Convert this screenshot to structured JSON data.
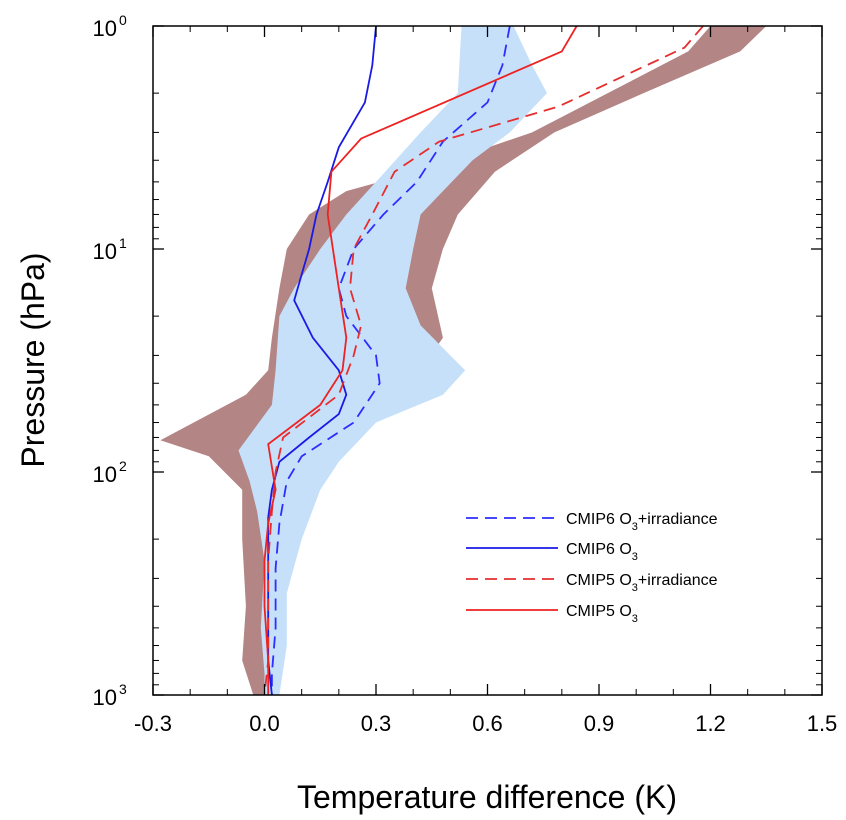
{
  "chart_data": {
    "type": "line",
    "xlabel": "Temperature difference (K)",
    "ylabel": "Pressure (hPa)",
    "xlim": [
      -0.3,
      1.5
    ],
    "ylim": [
      1000,
      1
    ],
    "y_scale": "log",
    "x_ticks": [
      -0.3,
      0.0,
      0.3,
      0.6,
      0.9,
      1.2,
      1.5
    ],
    "x_tick_labels": [
      "-0.3",
      "0.0",
      "0.3",
      "0.6",
      "0.9",
      "1.2",
      "1.5"
    ],
    "y_ticks": [
      {
        "value": 1,
        "base": "10",
        "exp": "0"
      },
      {
        "value": 10,
        "base": "10",
        "exp": "1"
      },
      {
        "value": 100,
        "base": "10",
        "exp": "2"
      },
      {
        "value": 1000,
        "base": "10",
        "exp": "3"
      }
    ],
    "grid": false,
    "legend_position": "bottom-right",
    "bands": [
      {
        "color": "#b38585",
        "left": [
          [
            1.2,
            1
          ],
          [
            1.14,
            1.3
          ],
          [
            0.72,
            3
          ],
          [
            0.41,
            4.5
          ],
          [
            0.22,
            5.5
          ],
          [
            0.12,
            7
          ],
          [
            0.06,
            10
          ],
          [
            0.04,
            15
          ],
          [
            0.02,
            25
          ],
          [
            0.01,
            35
          ],
          [
            -0.05,
            45
          ],
          [
            -0.28,
            72
          ],
          [
            -0.15,
            85
          ],
          [
            -0.06,
            120
          ],
          [
            -0.06,
            200
          ],
          [
            -0.05,
            400
          ],
          [
            -0.06,
            700
          ],
          [
            -0.03,
            1000
          ]
        ],
        "right": [
          [
            1.35,
            1
          ],
          [
            1.28,
            1.3
          ],
          [
            1.02,
            2
          ],
          [
            0.78,
            3
          ],
          [
            0.62,
            4.5
          ],
          [
            0.52,
            7
          ],
          [
            0.48,
            10
          ],
          [
            0.45,
            15
          ],
          [
            0.48,
            25
          ],
          [
            0.42,
            35
          ],
          [
            0.2,
            50
          ],
          [
            0.02,
            80
          ],
          [
            0.02,
            150
          ],
          [
            0.04,
            300
          ],
          [
            0.04,
            600
          ],
          [
            0.03,
            1000
          ]
        ]
      },
      {
        "color": "#c6e0fa",
        "left": [
          [
            0.53,
            1
          ],
          [
            0.52,
            2
          ],
          [
            0.42,
            3
          ],
          [
            0.3,
            5
          ],
          [
            0.22,
            7
          ],
          [
            0.15,
            10
          ],
          [
            0.08,
            15
          ],
          [
            0.04,
            20
          ],
          [
            0.03,
            35
          ],
          [
            0.02,
            50
          ],
          [
            -0.07,
            80
          ],
          [
            -0.04,
            110
          ],
          [
            -0.02,
            150
          ],
          [
            0.0,
            250
          ],
          [
            -0.01,
            500
          ],
          [
            0.0,
            800
          ],
          [
            0.0,
            1000
          ]
        ],
        "right": [
          [
            0.67,
            1
          ],
          [
            0.72,
            1.5
          ],
          [
            0.76,
            2
          ],
          [
            0.66,
            3
          ],
          [
            0.56,
            4
          ],
          [
            0.48,
            5.5
          ],
          [
            0.42,
            7
          ],
          [
            0.4,
            10
          ],
          [
            0.38,
            15
          ],
          [
            0.42,
            22
          ],
          [
            0.5,
            30
          ],
          [
            0.54,
            35
          ],
          [
            0.48,
            45
          ],
          [
            0.3,
            60
          ],
          [
            0.2,
            90
          ],
          [
            0.15,
            120
          ],
          [
            0.1,
            200
          ],
          [
            0.06,
            350
          ],
          [
            0.06,
            600
          ],
          [
            0.04,
            1000
          ]
        ]
      }
    ],
    "series": [
      {
        "name": "CMIP6 O3+irradiance",
        "name_base": "CMIP6 O",
        "name_sub": "3",
        "name_suffix": "+irradiance",
        "color": "#2d2dff",
        "dash": true,
        "points": [
          [
            0.66,
            1
          ],
          [
            0.64,
            1.5
          ],
          [
            0.6,
            2.2
          ],
          [
            0.48,
            3.3
          ],
          [
            0.41,
            5
          ],
          [
            0.32,
            7
          ],
          [
            0.24,
            10
          ],
          [
            0.2,
            15
          ],
          [
            0.22,
            20
          ],
          [
            0.3,
            30
          ],
          [
            0.31,
            40
          ],
          [
            0.24,
            60
          ],
          [
            0.1,
            85
          ],
          [
            0.06,
            110
          ],
          [
            0.04,
            170
          ],
          [
            0.03,
            270
          ],
          [
            0.03,
            500
          ],
          [
            0.02,
            800
          ],
          [
            0.02,
            1000
          ]
        ]
      },
      {
        "name": "CMIP6 O3",
        "name_base": "CMIP6 O",
        "name_sub": "3",
        "name_suffix": "",
        "color": "#1a1ae6",
        "dash": false,
        "points": [
          [
            0.3,
            1
          ],
          [
            0.29,
            1.5
          ],
          [
            0.27,
            2.2
          ],
          [
            0.2,
            3.5
          ],
          [
            0.17,
            5
          ],
          [
            0.14,
            7
          ],
          [
            0.12,
            10
          ],
          [
            0.1,
            13
          ],
          [
            0.08,
            17
          ],
          [
            0.13,
            25
          ],
          [
            0.2,
            35
          ],
          [
            0.22,
            45
          ],
          [
            0.2,
            55
          ],
          [
            0.12,
            70
          ],
          [
            0.04,
            90
          ],
          [
            0.02,
            120
          ],
          [
            0.01,
            160
          ],
          [
            0.01,
            250
          ],
          [
            0.01,
            400
          ],
          [
            0.01,
            700
          ],
          [
            0.02,
            1000
          ]
        ]
      },
      {
        "name": "CMIP5 O3+irradiance",
        "name_base": "CMIP5 O",
        "name_sub": "3",
        "name_suffix": "+irradiance",
        "color": "#e62e2e",
        "dash": true,
        "points": [
          [
            1.18,
            1
          ],
          [
            1.13,
            1.25
          ],
          [
            0.79,
            2.3
          ],
          [
            0.47,
            3.3
          ],
          [
            0.35,
            4.5
          ],
          [
            0.29,
            7
          ],
          [
            0.24,
            10
          ],
          [
            0.23,
            15
          ],
          [
            0.26,
            22
          ],
          [
            0.24,
            30
          ],
          [
            0.2,
            45
          ],
          [
            0.05,
            70
          ],
          [
            0.03,
            100
          ],
          [
            0.02,
            150
          ],
          [
            0.01,
            250
          ],
          [
            0.01,
            400
          ],
          [
            0.01,
            700
          ],
          [
            0.0,
            1000
          ]
        ]
      },
      {
        "name": "CMIP5 O3",
        "name_base": "CMIP5 O",
        "name_sub": "3",
        "name_suffix": "",
        "color": "#ee2222",
        "dash": false,
        "points": [
          [
            0.84,
            1
          ],
          [
            0.8,
            1.3
          ],
          [
            0.26,
            3.2
          ],
          [
            0.18,
            4.5
          ],
          [
            0.17,
            7
          ],
          [
            0.2,
            15
          ],
          [
            0.22,
            25
          ],
          [
            0.21,
            35
          ],
          [
            0.15,
            50
          ],
          [
            0.01,
            75
          ],
          [
            0.02,
            95
          ],
          [
            0.03,
            120
          ],
          [
            0.01,
            170
          ],
          [
            0.0,
            250
          ],
          [
            0.0,
            400
          ],
          [
            0.01,
            700
          ],
          [
            0.01,
            1000
          ]
        ]
      }
    ]
  }
}
